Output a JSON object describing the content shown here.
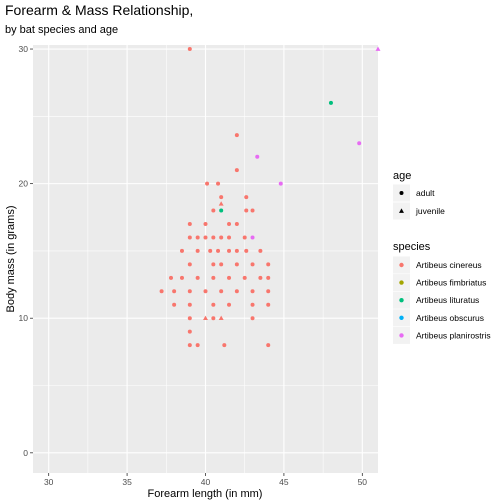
{
  "chart_data": {
    "type": "scatter",
    "title": "Forearm & Mass Relationship,",
    "subtitle": "by bat species and age",
    "xlabel": "Forearm length (in mm)",
    "ylabel": "Body mass (in grams)",
    "xlim": [
      29,
      51
    ],
    "ylim": [
      -1.5,
      30.3
    ],
    "x_ticks": [
      30,
      35,
      40,
      45,
      50
    ],
    "y_ticks": [
      0,
      10,
      20,
      30
    ],
    "x_tick_labels": [
      "30",
      "35",
      "40",
      "45",
      "50"
    ],
    "y_tick_labels": [
      "0",
      "10",
      "20",
      "30"
    ],
    "grid": true,
    "legend_position": "right",
    "legends": {
      "age": {
        "title": "age",
        "entries": [
          {
            "label": "adult",
            "shape": "circle"
          },
          {
            "label": "juvenile",
            "shape": "triangle"
          }
        ]
      },
      "species": {
        "title": "species",
        "entries": [
          {
            "label": "Artibeus cinereus",
            "color": "#F8766D"
          },
          {
            "label": "Artibeus fimbriatus",
            "color": "#A3A500"
          },
          {
            "label": "Artibeus lituratus",
            "color": "#00BF7D"
          },
          {
            "label": "Artibeus obscurus",
            "color": "#00B0F6"
          },
          {
            "label": "Artibeus planirostris",
            "color": "#E76BF3"
          }
        ]
      }
    },
    "series": [
      {
        "name": "Artibeus cinereus",
        "color": "#F8766D",
        "points": [
          [
            39.0,
            30.0,
            "adult"
          ],
          [
            42.0,
            23.6,
            "adult"
          ],
          [
            42.0,
            21.0,
            "adult"
          ],
          [
            40.1,
            20.0,
            "adult"
          ],
          [
            40.8,
            20.0,
            "adult"
          ],
          [
            41.0,
            19.0,
            "adult"
          ],
          [
            41.0,
            18.5,
            "juvenile"
          ],
          [
            42.6,
            19.0,
            "adult"
          ],
          [
            42.6,
            18.0,
            "adult"
          ],
          [
            40.5,
            18.0,
            "adult"
          ],
          [
            43.0,
            18.0,
            "adult"
          ],
          [
            39.0,
            17.0,
            "adult"
          ],
          [
            40.0,
            17.0,
            "adult"
          ],
          [
            41.5,
            17.0,
            "adult"
          ],
          [
            42.0,
            17.0,
            "adult"
          ],
          [
            39.0,
            16.0,
            "adult"
          ],
          [
            39.5,
            16.0,
            "adult"
          ],
          [
            40.0,
            16.0,
            "adult"
          ],
          [
            40.5,
            16.0,
            "adult"
          ],
          [
            41.0,
            16.0,
            "adult"
          ],
          [
            41.5,
            16.0,
            "adult"
          ],
          [
            42.5,
            16.0,
            "adult"
          ],
          [
            38.5,
            15.0,
            "adult"
          ],
          [
            39.5,
            15.0,
            "adult"
          ],
          [
            40.3,
            15.0,
            "adult"
          ],
          [
            40.8,
            15.0,
            "adult"
          ],
          [
            41.5,
            15.0,
            "adult"
          ],
          [
            42.0,
            15.0,
            "adult"
          ],
          [
            42.6,
            15.0,
            "adult"
          ],
          [
            43.5,
            15.0,
            "adult"
          ],
          [
            39.0,
            14.0,
            "adult"
          ],
          [
            40.5,
            14.0,
            "adult"
          ],
          [
            41.0,
            14.0,
            "adult"
          ],
          [
            42.0,
            14.0,
            "adult"
          ],
          [
            43.0,
            14.0,
            "adult"
          ],
          [
            44.0,
            14.0,
            "adult"
          ],
          [
            37.8,
            13.0,
            "adult"
          ],
          [
            38.5,
            13.0,
            "adult"
          ],
          [
            39.5,
            13.0,
            "adult"
          ],
          [
            40.5,
            13.0,
            "adult"
          ],
          [
            41.5,
            13.0,
            "adult"
          ],
          [
            42.5,
            13.0,
            "adult"
          ],
          [
            43.5,
            13.0,
            "adult"
          ],
          [
            44.0,
            13.0,
            "adult"
          ],
          [
            37.2,
            12.0,
            "adult"
          ],
          [
            38.0,
            12.0,
            "adult"
          ],
          [
            39.0,
            12.0,
            "adult"
          ],
          [
            40.0,
            12.0,
            "adult"
          ],
          [
            41.0,
            12.0,
            "adult"
          ],
          [
            42.0,
            12.0,
            "adult"
          ],
          [
            43.0,
            12.0,
            "adult"
          ],
          [
            44.0,
            12.0,
            "adult"
          ],
          [
            38.0,
            11.0,
            "adult"
          ],
          [
            39.0,
            11.0,
            "adult"
          ],
          [
            40.5,
            11.0,
            "adult"
          ],
          [
            41.5,
            11.0,
            "adult"
          ],
          [
            43.0,
            11.0,
            "adult"
          ],
          [
            44.0,
            11.0,
            "adult"
          ],
          [
            39.0,
            10.0,
            "adult"
          ],
          [
            40.0,
            10.0,
            "juvenile"
          ],
          [
            40.5,
            10.0,
            "adult"
          ],
          [
            41.0,
            10.0,
            "juvenile"
          ],
          [
            43.0,
            10.0,
            "adult"
          ],
          [
            39.0,
            9.0,
            "adult"
          ],
          [
            39.0,
            8.0,
            "adult"
          ],
          [
            39.5,
            8.0,
            "adult"
          ],
          [
            41.2,
            8.0,
            "adult"
          ],
          [
            44.0,
            8.0,
            "adult"
          ]
        ]
      },
      {
        "name": "Artibeus lituratus",
        "color": "#00BF7D",
        "points": [
          [
            48.0,
            26.0,
            "adult"
          ],
          [
            41.0,
            18.0,
            "adult"
          ]
        ]
      },
      {
        "name": "Artibeus planirostris",
        "color": "#E76BF3",
        "points": [
          [
            51.0,
            30.0,
            "juvenile"
          ],
          [
            49.8,
            23.0,
            "adult"
          ],
          [
            43.3,
            22.0,
            "adult"
          ],
          [
            44.8,
            20.0,
            "adult"
          ],
          [
            43.0,
            16.0,
            "adult"
          ]
        ]
      }
    ]
  }
}
